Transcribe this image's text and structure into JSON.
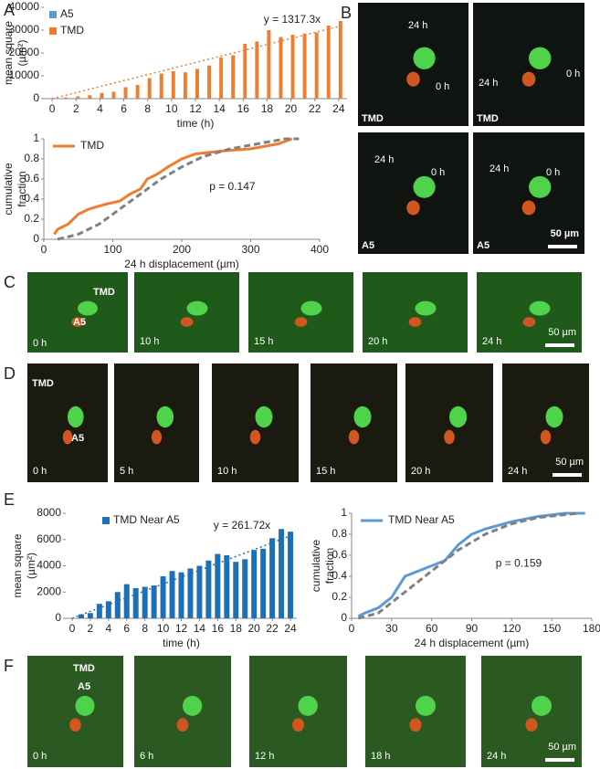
{
  "panel_labels": [
    "A",
    "B",
    "C",
    "D",
    "E",
    "F"
  ],
  "chart_data": [
    {
      "type": "bar",
      "ylabel": [
        "mean square",
        "(µm²)"
      ],
      "xlabel": "time (h)",
      "x": [
        0,
        1,
        2,
        3,
        4,
        5,
        6,
        7,
        8,
        9,
        10,
        11,
        12,
        13,
        14,
        15,
        16,
        17,
        18,
        19,
        20,
        21,
        22,
        23,
        24
      ],
      "xlim": [
        -0.7,
        24.7
      ],
      "xticks": [
        0,
        2,
        4,
        6,
        8,
        10,
        12,
        14,
        16,
        18,
        20,
        22,
        24
      ],
      "ylim": [
        0,
        40000
      ],
      "yticks": [
        0,
        10000,
        20000,
        30000,
        40000
      ],
      "series": [
        {
          "name": "A5",
          "color": "#5b9bd5",
          "values": [
            0,
            0,
            0,
            0,
            0,
            0,
            0,
            0,
            0,
            0,
            0,
            0,
            0,
            0,
            0,
            0,
            0,
            0,
            0,
            0,
            0,
            0,
            0,
            0,
            0
          ]
        },
        {
          "name": "TMD",
          "color": "#ed7d31",
          "values": [
            0,
            500,
            1000,
            1500,
            2500,
            3000,
            5000,
            6000,
            9000,
            11000,
            12000,
            11500,
            13000,
            14500,
            18000,
            19000,
            24000,
            25000,
            30000,
            27000,
            28000,
            28500,
            29000,
            32000,
            34000
          ]
        }
      ],
      "trendline": {
        "slope": 1317.3,
        "label": "y = 1317.3x",
        "color": "#ed7d31"
      },
      "legend": "upper left",
      "grid": false
    },
    {
      "type": "line",
      "ylabel": [
        "cumulative",
        "fraction"
      ],
      "xlabel": "24 h displacement (µm)",
      "xlim": [
        0,
        400
      ],
      "xticks": [
        0,
        100,
        200,
        300,
        400
      ],
      "ylim": [
        0,
        1
      ],
      "yticks": [
        0,
        0.2,
        0.4,
        0.6,
        0.8,
        1
      ],
      "series": [
        {
          "name": "TMD",
          "color": "#ed7d31",
          "x": [
            15,
            20,
            35,
            50,
            65,
            90,
            110,
            125,
            140,
            150,
            165,
            180,
            200,
            220,
            260,
            300,
            340,
            360
          ],
          "values": [
            0.05,
            0.1,
            0.15,
            0.25,
            0.3,
            0.35,
            0.38,
            0.45,
            0.5,
            0.6,
            0.65,
            0.72,
            0.8,
            0.85,
            0.88,
            0.9,
            0.95,
            1
          ]
        },
        {
          "color": "#808080",
          "dash": true,
          "x": [
            20,
            50,
            80,
            110,
            140,
            170,
            200,
            230,
            270,
            310,
            350,
            370
          ],
          "values": [
            0,
            0.05,
            0.15,
            0.3,
            0.45,
            0.6,
            0.72,
            0.82,
            0.9,
            0.95,
            1,
            1
          ]
        }
      ],
      "annotation": "p = 0.147",
      "legend": "upper left",
      "grid": false
    },
    {
      "type": "bar",
      "ylabel": [
        "mean square",
        "(µm²)"
      ],
      "xlabel": "time (h)",
      "x": [
        0,
        1,
        2,
        3,
        4,
        5,
        6,
        7,
        8,
        9,
        10,
        11,
        12,
        13,
        14,
        15,
        16,
        17,
        18,
        19,
        20,
        21,
        22,
        23,
        24
      ],
      "xlim": [
        -0.7,
        24.7
      ],
      "xticks": [
        0,
        2,
        4,
        6,
        8,
        10,
        12,
        14,
        16,
        18,
        20,
        22,
        24
      ],
      "ylim": [
        0,
        8000
      ],
      "yticks": [
        0,
        2000,
        4000,
        6000,
        8000
      ],
      "series": [
        {
          "name": "TMD Near A5",
          "color": "#1f6fb4",
          "values": [
            0,
            300,
            400,
            1100,
            1300,
            2000,
            2600,
            2300,
            2400,
            2500,
            3200,
            3600,
            3500,
            3800,
            4000,
            4400,
            4900,
            4800,
            4300,
            4500,
            5200,
            5300,
            6100,
            6800,
            6600
          ]
        }
      ],
      "trendline": {
        "slope": 261.72,
        "label": "y = 261.72x",
        "color": "#1f6fb4"
      },
      "legend": "upper left",
      "grid": false
    },
    {
      "type": "line",
      "ylabel": [
        "cumulative",
        "fraction"
      ],
      "xlabel": "24 h displacement (µm)",
      "xlim": [
        0,
        180
      ],
      "xticks": [
        0,
        30,
        60,
        90,
        120,
        150,
        180
      ],
      "ylim": [
        0,
        1
      ],
      "yticks": [
        0,
        0.2,
        0.4,
        0.6,
        0.8,
        1
      ],
      "series": [
        {
          "name": "TMD Near A5",
          "color": "#5b9bd5",
          "x": [
            5,
            10,
            20,
            30,
            40,
            50,
            60,
            70,
            80,
            90,
            100,
            120,
            140,
            160,
            175
          ],
          "values": [
            0.02,
            0.05,
            0.1,
            0.2,
            0.4,
            0.45,
            0.5,
            0.55,
            0.7,
            0.8,
            0.85,
            0.92,
            0.97,
            1,
            1
          ]
        },
        {
          "color": "#808080",
          "dash": true,
          "x": [
            5,
            20,
            40,
            60,
            80,
            100,
            120,
            140,
            170
          ],
          "values": [
            0,
            0.05,
            0.25,
            0.45,
            0.65,
            0.8,
            0.9,
            0.96,
            1
          ]
        }
      ],
      "annotation": "p = 0.159",
      "legend": "upper left",
      "grid": false
    }
  ],
  "images": {
    "B": {
      "frames": [
        [
          "24 h",
          "0 h",
          "TMD"
        ],
        [
          "0 h",
          "24 h",
          "TMD"
        ],
        [
          "24 h",
          "0 h",
          "A5"
        ],
        [
          "24 h",
          "0 h",
          "A5"
        ]
      ],
      "scale": "50 µm"
    },
    "C": {
      "frames": [
        [
          "TMD",
          "A5",
          "0 h"
        ],
        [
          "10 h"
        ],
        [
          "15 h"
        ],
        [
          "20 h"
        ],
        [
          "24 h"
        ]
      ],
      "scale": "50 µm"
    },
    "D": {
      "frames": [
        [
          "TMD",
          "A5",
          "0 h"
        ],
        [
          "5 h"
        ],
        [
          "10 h"
        ],
        [
          "15 h"
        ],
        [
          "20 h"
        ],
        [
          "24 h"
        ]
      ],
      "scale": "50 µm"
    },
    "F": {
      "frames": [
        [
          "TMD",
          "A5",
          "0 h"
        ],
        [
          "6 h"
        ],
        [
          "12 h"
        ],
        [
          "18 h"
        ],
        [
          "24 h"
        ]
      ],
      "scale": "50 µm"
    }
  }
}
